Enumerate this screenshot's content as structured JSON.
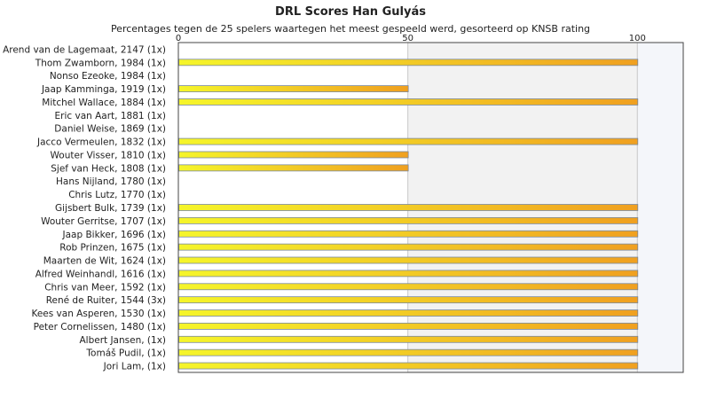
{
  "chart_data": {
    "type": "bar",
    "orientation": "horizontal",
    "title": "DRL Scores Han Gulyás",
    "subtitle": "Percentages tegen de 25 spelers waartegen het meest gespeeld werd, gesorteerd op KNSB rating",
    "xlim": [
      0,
      110
    ],
    "xticks": [
      0,
      50,
      100
    ],
    "grid": true,
    "categories": [
      "Arend van de Lagemaat, 2147 (1x)",
      "Thom Zwamborn, 1984 (1x)",
      "Nonso Ezeoke, 1984 (1x)",
      "Jaap Kamminga, 1919 (1x)",
      "Mitchel Wallace, 1884 (1x)",
      "Eric van Aart, 1881 (1x)",
      "Daniel Weise, 1869 (1x)",
      "Jacco Vermeulen, 1832 (1x)",
      "Wouter Visser, 1810 (1x)",
      "Sjef van Heck, 1808 (1x)",
      "Hans Nijland, 1780 (1x)",
      "Chris Lutz, 1770 (1x)",
      "Gijsbert Bulk, 1739 (1x)",
      "Wouter Gerritse, 1707 (1x)",
      "Jaap Bikker, 1696 (1x)",
      "Rob Prinzen, 1675 (1x)",
      "Maarten de Wit, 1624 (1x)",
      "Alfred Weinhandl, 1616 (1x)",
      "Chris van Meer, 1592 (1x)",
      "René de Ruiter, 1544 (3x)",
      "Kees van Asperen, 1530 (1x)",
      "Peter Cornelissen, 1480 (1x)",
      "Albert Jansen,  (1x)",
      "Tomáš Pudil,  (1x)",
      "Jori Lam,  (1x)"
    ],
    "values": [
      0,
      100,
      0,
      50,
      100,
      0,
      0,
      100,
      50,
      50,
      0,
      0,
      100,
      100,
      100,
      100,
      100,
      100,
      100,
      100,
      100,
      100,
      100,
      100,
      100
    ],
    "colors": {
      "bar_start": "#f5f52a",
      "bar_end": "#f0a020",
      "bar_border": "#7a8aa0",
      "band": "#f2f2f2",
      "band_far": "#f4f6fa",
      "grid": "#c8c8c8",
      "axis": "#444444"
    }
  }
}
